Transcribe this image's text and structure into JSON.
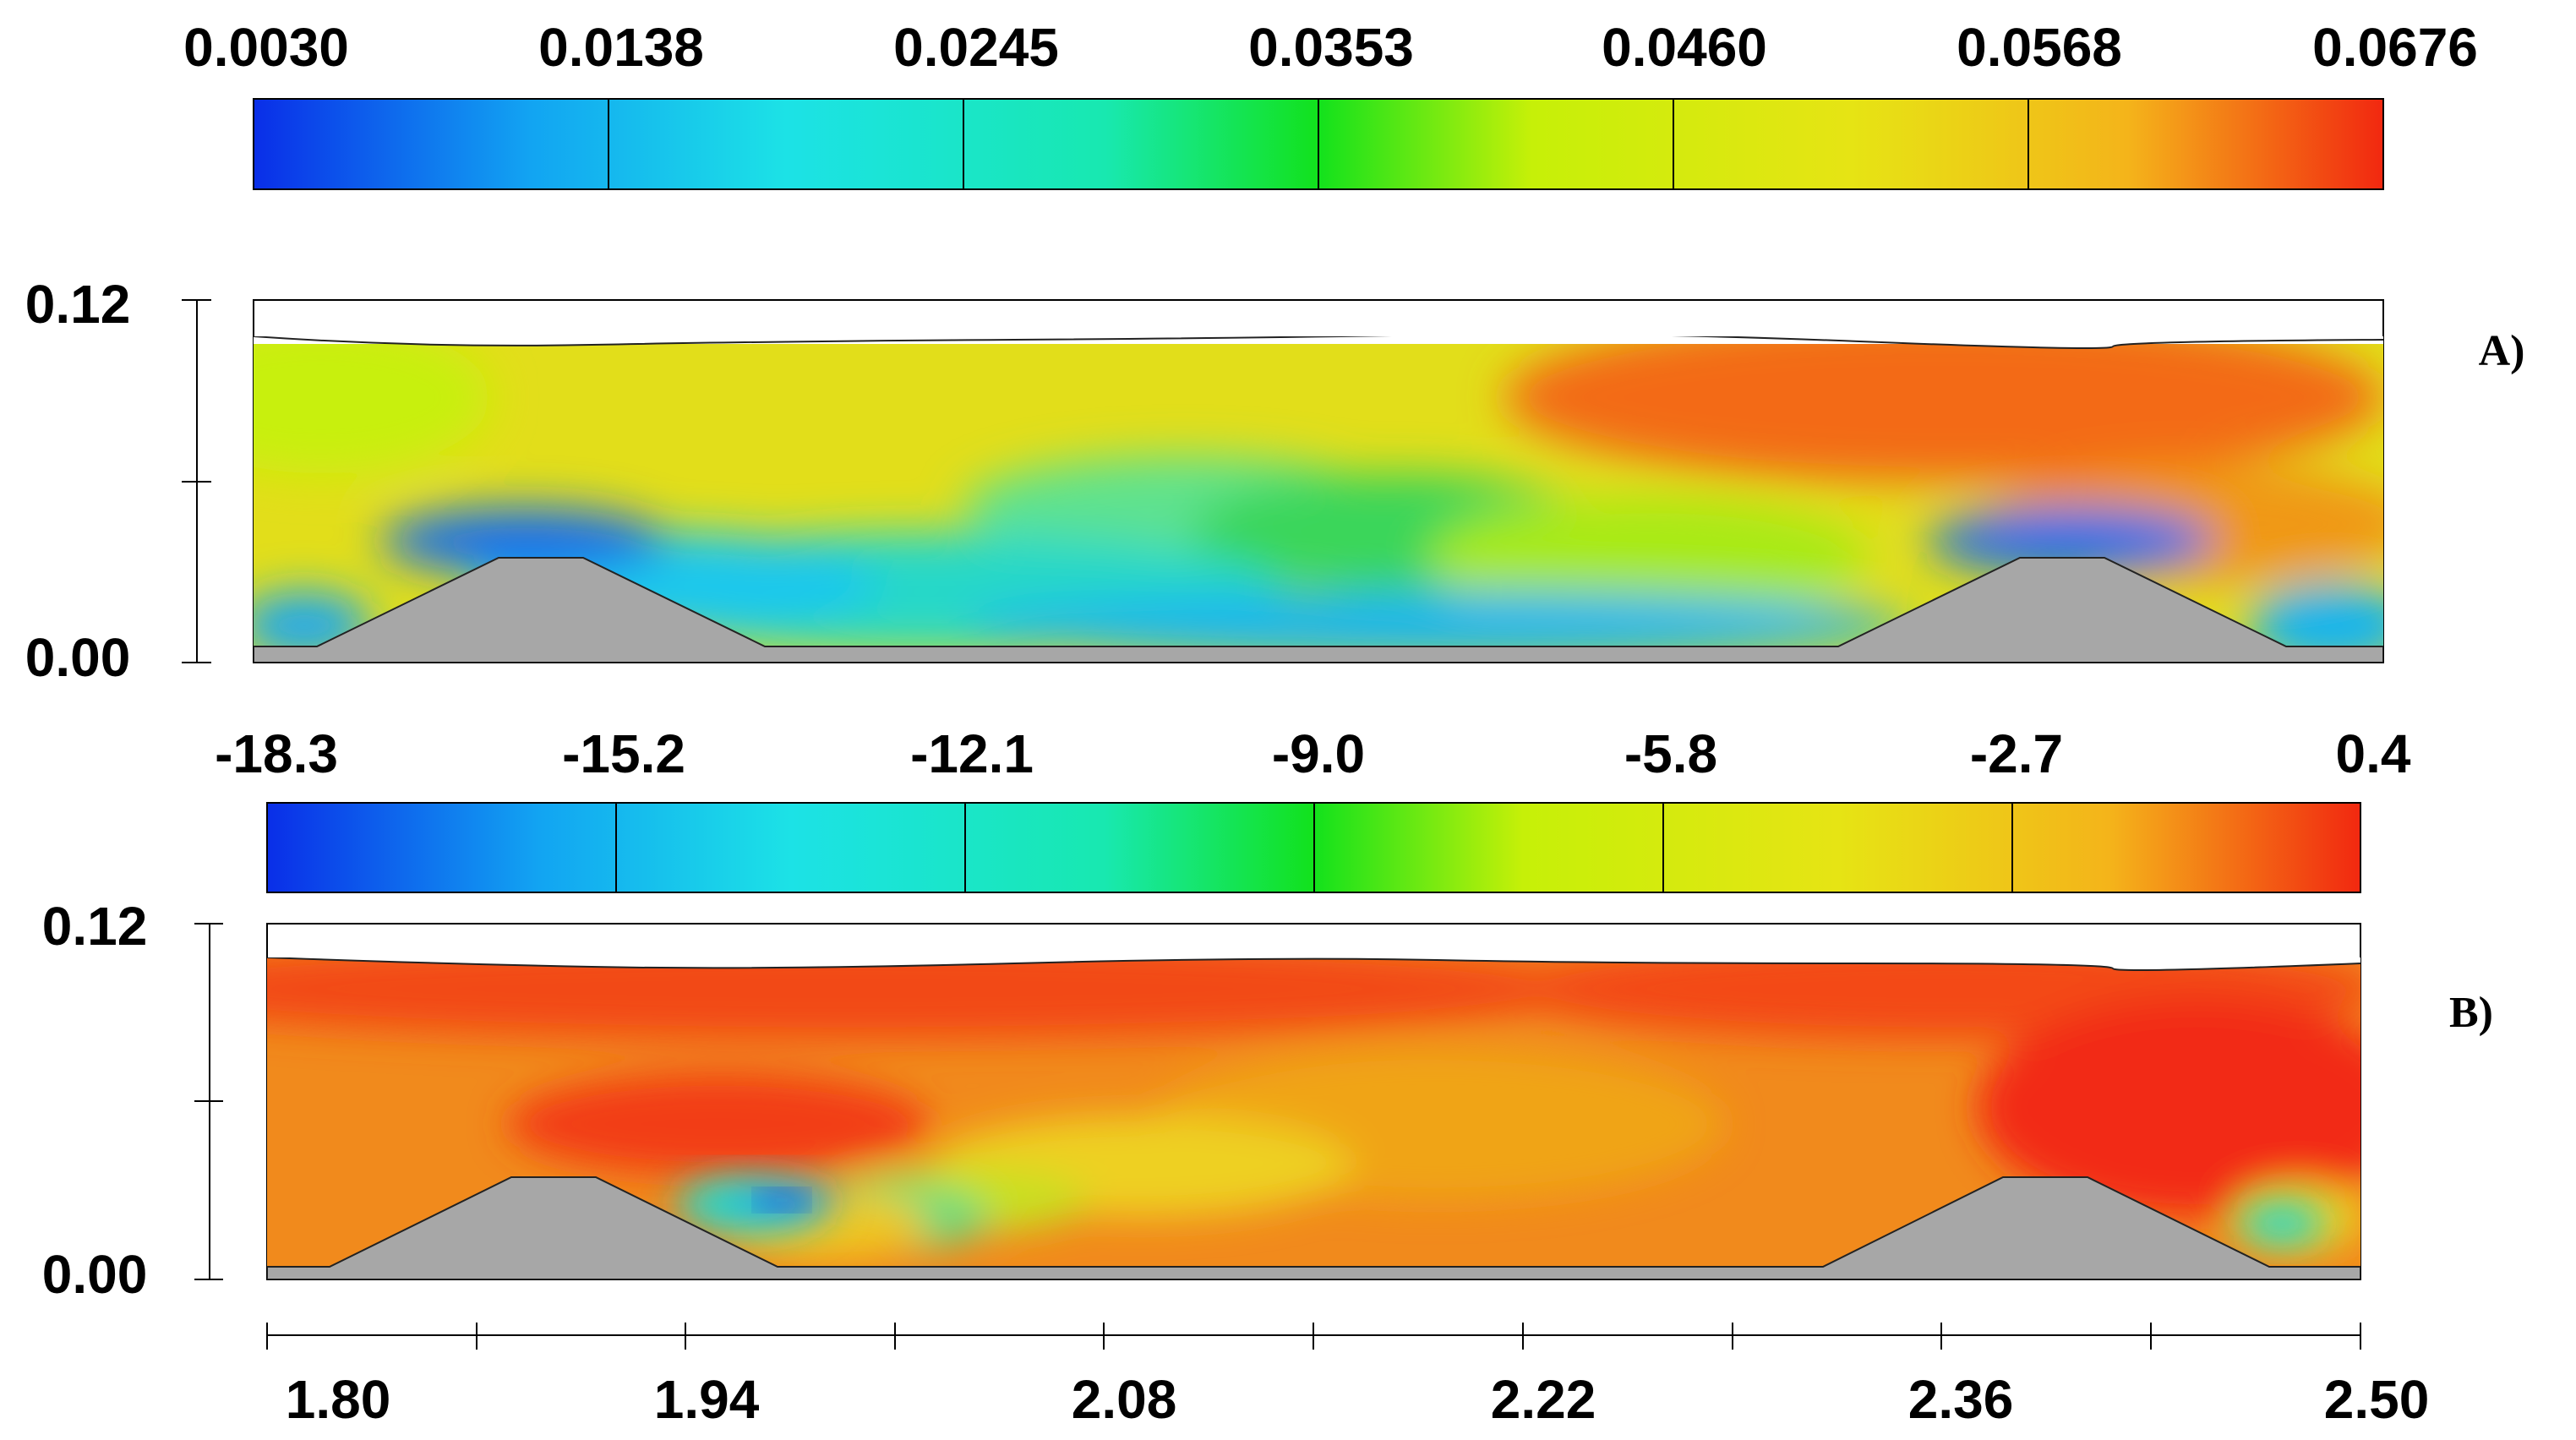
{
  "chart_data": [
    {
      "type": "heatmap",
      "panel_label": "A)",
      "colorbar": {
        "min": 0.003,
        "max": 0.0676,
        "tick_labels": [
          "0.0030",
          "0.0138",
          "0.0245",
          "0.0353",
          "0.0460",
          "0.0568",
          "0.0676"
        ]
      },
      "y_tick_labels": [
        "0.12",
        "0.00"
      ],
      "ylim": [
        0,
        0.12
      ],
      "xlim": [
        1.8,
        2.5
      ],
      "obstacles_x": [
        [
          1.82,
          1.97
        ],
        [
          2.35,
          2.5
        ]
      ]
    },
    {
      "type": "heatmap",
      "panel_label": "B)",
      "colorbar": {
        "min": -18.3,
        "max": 0.4,
        "tick_labels": [
          "-18.3",
          "-15.2",
          "-12.1",
          "-9.0",
          "-5.8",
          "-2.7",
          "0.4"
        ]
      },
      "y_tick_labels": [
        "0.12",
        "0.00"
      ],
      "ylim": [
        0,
        0.12
      ],
      "xlim": [
        1.8,
        2.5
      ],
      "x_tick_labels": [
        "1.80",
        "1.94",
        "2.08",
        "2.22",
        "2.36",
        "2.50"
      ]
    }
  ],
  "colors": {
    "jet": [
      "#0a2ee8",
      "#12a4f2",
      "#1ce2e6",
      "#18e8b0",
      "#12e21c",
      "#c6f008",
      "#e6e414",
      "#f4b41a",
      "#f22810"
    ],
    "obstacle": "#a7a7a7"
  }
}
